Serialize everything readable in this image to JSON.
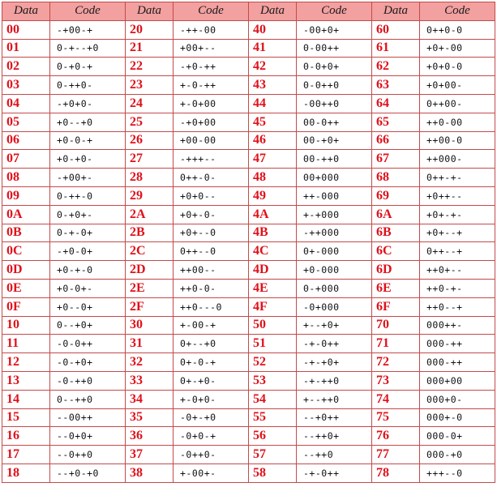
{
  "headers": [
    "Data",
    "Code",
    "Data",
    "Code",
    "Data",
    "Code",
    "Data",
    "Code"
  ],
  "rows": [
    [
      [
        "00",
        "-+00-+"
      ],
      [
        "20",
        "-++-00"
      ],
      [
        "40",
        "-00+0+"
      ],
      [
        "60",
        "0++0-0"
      ]
    ],
    [
      [
        "01",
        "0-+--+0"
      ],
      [
        "21",
        "+00+--"
      ],
      [
        "41",
        "0-00++"
      ],
      [
        "61",
        "+0+-00"
      ]
    ],
    [
      [
        "02",
        "0-+0-+"
      ],
      [
        "22",
        "-+0-++"
      ],
      [
        "42",
        "0-0+0+"
      ],
      [
        "62",
        "+0+0-0"
      ]
    ],
    [
      [
        "03",
        "0-++0-"
      ],
      [
        "23",
        "+-0-++"
      ],
      [
        "43",
        "0-0++0"
      ],
      [
        "63",
        "+0+00-"
      ]
    ],
    [
      [
        "04",
        "-+0+0-"
      ],
      [
        "24",
        "+-0+00"
      ],
      [
        "44",
        "-00++0"
      ],
      [
        "64",
        "0++00-"
      ]
    ],
    [
      [
        "05",
        "+0--+0"
      ],
      [
        "25",
        "-+0+00"
      ],
      [
        "45",
        "00-0++"
      ],
      [
        "65",
        "++0-00"
      ]
    ],
    [
      [
        "06",
        "+0-0-+"
      ],
      [
        "26",
        "+00-00"
      ],
      [
        "46",
        "00-+0+"
      ],
      [
        "66",
        "++00-0"
      ]
    ],
    [
      [
        "07",
        "+0-+0-"
      ],
      [
        "27",
        "-+++--"
      ],
      [
        "47",
        "00-++0"
      ],
      [
        "67",
        "++000-"
      ]
    ],
    [
      [
        "08",
        "-+00+-"
      ],
      [
        "28",
        "0++-0-"
      ],
      [
        "48",
        "00+000"
      ],
      [
        "68",
        "0++-+-"
      ]
    ],
    [
      [
        "09",
        "0-++-0"
      ],
      [
        "29",
        "+0+0--"
      ],
      [
        "49",
        "++-000"
      ],
      [
        "69",
        "+0++--"
      ]
    ],
    [
      [
        "0A",
        "0-+0+-"
      ],
      [
        "2A",
        "+0+-0-"
      ],
      [
        "4A",
        "+-+000"
      ],
      [
        "6A",
        "+0+-+-"
      ]
    ],
    [
      [
        "0B",
        "0-+-0+"
      ],
      [
        "2B",
        "+0+--0"
      ],
      [
        "4B",
        "-++000"
      ],
      [
        "6B",
        "+0+--+"
      ]
    ],
    [
      [
        "0C",
        "-+0-0+"
      ],
      [
        "2C",
        "0++--0"
      ],
      [
        "4C",
        "0+-000"
      ],
      [
        "6C",
        "0++--+"
      ]
    ],
    [
      [
        "0D",
        "+0-+-0"
      ],
      [
        "2D",
        "++00--"
      ],
      [
        "4D",
        "+0-000"
      ],
      [
        "6D",
        "++0+--"
      ]
    ],
    [
      [
        "0E",
        "+0-0+-"
      ],
      [
        "2E",
        "++0-0-"
      ],
      [
        "4E",
        "0-+000"
      ],
      [
        "6E",
        "++0-+-"
      ]
    ],
    [
      [
        "0F",
        "+0--0+"
      ],
      [
        "2F",
        "++0---0"
      ],
      [
        "4F",
        "-0+000"
      ],
      [
        "6F",
        "++0--+"
      ]
    ],
    [
      [
        "10",
        "0--+0+"
      ],
      [
        "30",
        "+-00-+"
      ],
      [
        "50",
        "+--+0+"
      ],
      [
        "70",
        "000++-"
      ]
    ],
    [
      [
        "11",
        "-0-0++"
      ],
      [
        "31",
        "0+--+0"
      ],
      [
        "51",
        "-+-0++"
      ],
      [
        "71",
        "000-++"
      ]
    ],
    [
      [
        "12",
        "-0-+0+"
      ],
      [
        "32",
        "0+-0-+"
      ],
      [
        "52",
        "-+-+0+"
      ],
      [
        "72",
        "000-++"
      ]
    ],
    [
      [
        "13",
        "-0-++0"
      ],
      [
        "33",
        "0+-+0-"
      ],
      [
        "53",
        "-+-++0"
      ],
      [
        "73",
        "000+00"
      ]
    ],
    [
      [
        "14",
        "0--++0"
      ],
      [
        "34",
        "+-0+0-"
      ],
      [
        "54",
        "+--++0"
      ],
      [
        "74",
        "000+0-"
      ]
    ],
    [
      [
        "15",
        "--00++"
      ],
      [
        "35",
        "-0+-+0"
      ],
      [
        "55",
        "--+0++"
      ],
      [
        "75",
        "000+-0"
      ]
    ],
    [
      [
        "16",
        "--0+0+"
      ],
      [
        "36",
        "-0+0-+"
      ],
      [
        "56",
        "--++0+"
      ],
      [
        "76",
        "000-0+"
      ]
    ],
    [
      [
        "17",
        "--0++0"
      ],
      [
        "37",
        "-0++0-"
      ],
      [
        "57",
        "--++0"
      ],
      [
        "77",
        "000-+0"
      ]
    ],
    [
      [
        "18",
        "--+0-+0"
      ],
      [
        "38",
        "+-00+-"
      ],
      [
        "58",
        "-+-0++"
      ],
      [
        "78",
        "+++--0"
      ]
    ]
  ]
}
